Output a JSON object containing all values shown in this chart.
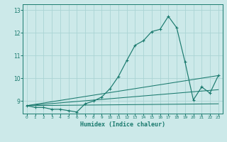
{
  "xlabel": "Humidex (Indice chaleur)",
  "xlim": [
    -0.5,
    23.5
  ],
  "ylim": [
    8.45,
    13.25
  ],
  "yticks": [
    9,
    10,
    11,
    12,
    13
  ],
  "xticks": [
    0,
    1,
    2,
    3,
    4,
    5,
    6,
    7,
    8,
    9,
    10,
    11,
    12,
    13,
    14,
    15,
    16,
    17,
    18,
    19,
    20,
    21,
    22,
    23
  ],
  "background_color": "#cce9e9",
  "grid_color": "#aad4d4",
  "line_color": "#1a7a6e",
  "main_line_x": [
    0,
    1,
    2,
    3,
    4,
    5,
    6,
    7,
    8,
    9,
    10,
    11,
    12,
    13,
    14,
    15,
    16,
    17,
    18,
    19,
    20,
    21,
    22,
    23
  ],
  "main_line_y": [
    8.8,
    8.72,
    8.72,
    8.64,
    8.64,
    8.58,
    8.52,
    8.88,
    9.0,
    9.18,
    9.55,
    10.08,
    10.78,
    11.45,
    11.65,
    12.05,
    12.15,
    12.72,
    12.22,
    10.72,
    9.05,
    9.62,
    9.35,
    10.12
  ],
  "aux_lines": [
    {
      "x": [
        0,
        23
      ],
      "y": [
        8.8,
        10.12
      ]
    },
    {
      "x": [
        0,
        23
      ],
      "y": [
        8.8,
        9.5
      ]
    },
    {
      "x": [
        0,
        23
      ],
      "y": [
        8.8,
        8.88
      ]
    }
  ]
}
